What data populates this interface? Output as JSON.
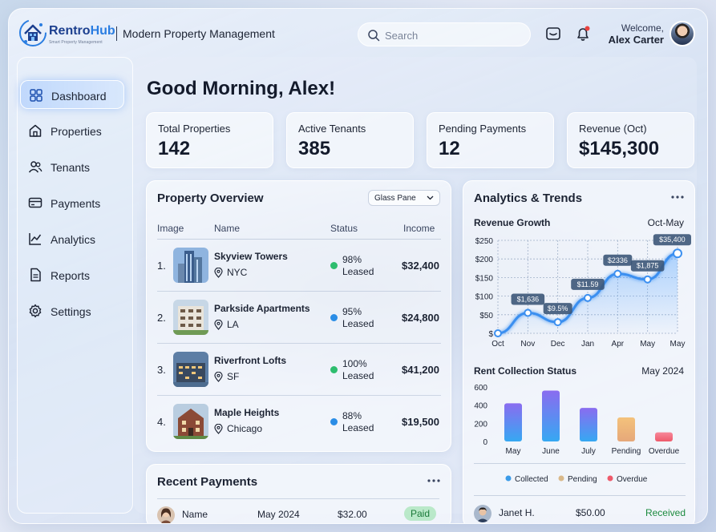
{
  "header": {
    "brand_part1": "Rentro",
    "brand_part2": "Hub",
    "brand_tagline": "Smart Property Management",
    "app_title": "Modern Property Management",
    "search_placeholder": "Search",
    "welcome": "Welcome,",
    "user_name": "Alex Carter",
    "notification_color": "#e8423f"
  },
  "sidebar": {
    "items": [
      {
        "label": "Dashboard",
        "icon": "grid-icon",
        "active": true
      },
      {
        "label": "Properties",
        "icon": "home-icon",
        "active": false
      },
      {
        "label": "Tenants",
        "icon": "users-icon",
        "active": false
      },
      {
        "label": "Payments",
        "icon": "card-icon",
        "active": false
      },
      {
        "label": "Analytics",
        "icon": "analytics-icon",
        "active": false
      },
      {
        "label": "Reports",
        "icon": "document-icon",
        "active": false
      },
      {
        "label": "Settings",
        "icon": "gear-icon",
        "active": false
      }
    ]
  },
  "main": {
    "greeting": "Good Morning, Alex!",
    "stats": [
      {
        "label": "Total Properties",
        "value": "142"
      },
      {
        "label": "Active Tenants",
        "value": "385"
      },
      {
        "label": "Pending Payments",
        "value": "12"
      },
      {
        "label": "Revenue (Oct)",
        "value": "$145,300"
      }
    ]
  },
  "property_overview": {
    "title": "Property Overview",
    "view_selector": "Glass Pane",
    "columns": [
      "Image",
      "Name",
      "Status",
      "Income"
    ],
    "rows": [
      {
        "num": "1.",
        "name": "Skyview Towers",
        "location": "NYC",
        "status_pct": "98%",
        "status_word": "Leased",
        "status_color": "#2dbd6e",
        "income": "$32,400"
      },
      {
        "num": "2.",
        "name": "Parkside Apartments",
        "location": "LA",
        "status_pct": "95%",
        "status_word": "Leased",
        "status_color": "#2a8de6",
        "income": "$24,800"
      },
      {
        "num": "3.",
        "name": "Riverfront Lofts",
        "location": "SF",
        "status_pct": "100%",
        "status_word": "Leased",
        "status_color": "#2dbd6e",
        "income": "$41,200"
      },
      {
        "num": "4.",
        "name": "Maple Heights",
        "location": "Chicago",
        "status_pct": "88%",
        "status_word": "Leased",
        "status_color": "#2a8de6",
        "income": "$19,500"
      }
    ]
  },
  "recent_payments": {
    "title": "Recent Payments",
    "row": {
      "name": "Name",
      "date": "May 2024",
      "amount": "$32.00",
      "status": "Paid"
    }
  },
  "analytics": {
    "title": "Analytics & Trends",
    "payment_row": {
      "name": "Janet H.",
      "amount": "$50.00",
      "status": "Received"
    }
  },
  "chart_data": [
    {
      "type": "line",
      "title": "Revenue Growth",
      "subtitle": "Oct-May",
      "x": [
        "Oct",
        "Nov",
        "Dec",
        "Jan",
        "Apr",
        "May",
        "May"
      ],
      "values": [
        0,
        55,
        30,
        95,
        160,
        145,
        215
      ],
      "point_labels": [
        "",
        "$1,636",
        "$9.5%",
        "$11.59",
        "$2336",
        "$1,875",
        "$35,400"
      ],
      "y_ticks": [
        "$",
        "$50",
        "$100",
        "$150",
        "$200",
        "$250"
      ],
      "ylim": [
        0,
        250
      ],
      "grid": true,
      "color": "#3b8ff0"
    },
    {
      "type": "bar",
      "title": "Rent Collection Status",
      "subtitle": "May 2024",
      "categories": [
        "May",
        "June",
        "July",
        "Pending",
        "Overdue"
      ],
      "values": [
        420,
        560,
        370,
        265,
        100
      ],
      "bar_groups": [
        "collected",
        "collected",
        "collected",
        "pending",
        "overdue"
      ],
      "y_ticks": [
        "0",
        "200",
        "400",
        "600"
      ],
      "ylim": [
        0,
        600
      ],
      "legend": [
        {
          "label": "Collected",
          "color": "#3b9be8"
        },
        {
          "label": "Pending",
          "color": "#d9b98a"
        },
        {
          "label": "Overdue",
          "color": "#ee5a6b"
        }
      ]
    }
  ]
}
